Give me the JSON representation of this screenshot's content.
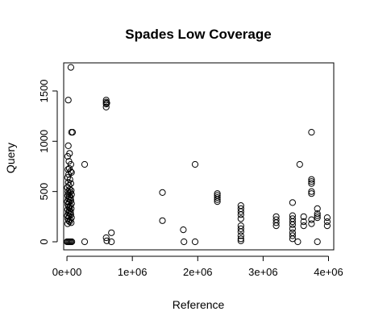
{
  "chart_data": {
    "type": "scatter",
    "title": "Spades Low Coverage",
    "xlabel": "Reference",
    "ylabel": "Query",
    "xlim": [
      -50000,
      4080000
    ],
    "ylim": [
      -80,
      1780
    ],
    "x_ticks": [
      {
        "value": 0,
        "label": "0e+00"
      },
      {
        "value": 1000000,
        "label": "1e+06"
      },
      {
        "value": 2000000,
        "label": "2e+06"
      },
      {
        "value": 3000000,
        "label": "3e+06"
      },
      {
        "value": 4000000,
        "label": "4e+06"
      }
    ],
    "y_ticks": [
      {
        "value": 0,
        "label": "0"
      },
      {
        "value": 500,
        "label": "500"
      },
      {
        "value": 1000,
        "label": "1000"
      },
      {
        "value": 1500,
        "label": "1500"
      }
    ],
    "grid": false,
    "legend": "none",
    "points": [
      [
        60000,
        1735
      ],
      [
        20000,
        1410
      ],
      [
        70000,
        1090
      ],
      [
        85000,
        1090
      ],
      [
        20000,
        955
      ],
      [
        40000,
        880
      ],
      [
        10000,
        850
      ],
      [
        30000,
        800
      ],
      [
        60000,
        770
      ],
      [
        15000,
        720
      ],
      [
        35000,
        730
      ],
      [
        55000,
        700
      ],
      [
        70000,
        690
      ],
      [
        25000,
        670
      ],
      [
        10000,
        640
      ],
      [
        45000,
        620
      ],
      [
        20000,
        590
      ],
      [
        60000,
        580
      ],
      [
        30000,
        560
      ],
      [
        5000,
        540
      ],
      [
        40000,
        520
      ],
      [
        65000,
        510
      ],
      [
        15000,
        500
      ],
      [
        50000,
        490
      ],
      [
        25000,
        480
      ],
      [
        70000,
        470
      ],
      [
        10000,
        460
      ],
      [
        35000,
        450
      ],
      [
        55000,
        440
      ],
      [
        20000,
        430
      ],
      [
        45000,
        420
      ],
      [
        60000,
        410
      ],
      [
        5000,
        400
      ],
      [
        30000,
        390
      ],
      [
        70000,
        380
      ],
      [
        15000,
        370
      ],
      [
        50000,
        360
      ],
      [
        25000,
        350
      ],
      [
        40000,
        340
      ],
      [
        65000,
        330
      ],
      [
        10000,
        320
      ],
      [
        35000,
        310
      ],
      [
        55000,
        300
      ],
      [
        20000,
        290
      ],
      [
        45000,
        280
      ],
      [
        60000,
        270
      ],
      [
        5000,
        260
      ],
      [
        30000,
        250
      ],
      [
        70000,
        240
      ],
      [
        15000,
        230
      ],
      [
        50000,
        220
      ],
      [
        25000,
        210
      ],
      [
        40000,
        200
      ],
      [
        65000,
        190
      ],
      [
        10000,
        180
      ],
      [
        0,
        0
      ],
      [
        15000,
        0
      ],
      [
        30000,
        0
      ],
      [
        45000,
        0
      ],
      [
        60000,
        0
      ],
      [
        75000,
        0
      ],
      [
        270000,
        770
      ],
      [
        270000,
        0
      ],
      [
        600000,
        1410
      ],
      [
        600000,
        1390
      ],
      [
        600000,
        1370
      ],
      [
        600000,
        1340
      ],
      [
        610000,
        1380
      ],
      [
        600000,
        40
      ],
      [
        610000,
        10
      ],
      [
        680000,
        90
      ],
      [
        680000,
        0
      ],
      [
        1460000,
        490
      ],
      [
        1460000,
        210
      ],
      [
        1780000,
        120
      ],
      [
        1790000,
        0
      ],
      [
        1960000,
        770
      ],
      [
        1960000,
        0
      ],
      [
        2300000,
        480
      ],
      [
        2300000,
        460
      ],
      [
        2300000,
        440
      ],
      [
        2300000,
        420
      ],
      [
        2300000,
        400
      ],
      [
        2660000,
        360
      ],
      [
        2660000,
        330
      ],
      [
        2660000,
        300
      ],
      [
        2660000,
        270
      ],
      [
        2660000,
        230
      ],
      [
        2660000,
        160
      ],
      [
        2660000,
        130
      ],
      [
        2660000,
        100
      ],
      [
        2660000,
        60
      ],
      [
        2660000,
        30
      ],
      [
        2660000,
        10
      ],
      [
        3200000,
        250
      ],
      [
        3200000,
        220
      ],
      [
        3200000,
        190
      ],
      [
        3200000,
        160
      ],
      [
        3450000,
        390
      ],
      [
        3450000,
        260
      ],
      [
        3450000,
        230
      ],
      [
        3450000,
        200
      ],
      [
        3450000,
        170
      ],
      [
        3450000,
        130
      ],
      [
        3450000,
        90
      ],
      [
        3450000,
        60
      ],
      [
        3450000,
        30
      ],
      [
        3530000,
        0
      ],
      [
        3560000,
        770
      ],
      [
        3620000,
        250
      ],
      [
        3620000,
        200
      ],
      [
        3620000,
        160
      ],
      [
        3740000,
        1090
      ],
      [
        3740000,
        620
      ],
      [
        3740000,
        600
      ],
      [
        3740000,
        580
      ],
      [
        3740000,
        500
      ],
      [
        3740000,
        480
      ],
      [
        3740000,
        220
      ],
      [
        3740000,
        180
      ],
      [
        3830000,
        330
      ],
      [
        3830000,
        280
      ],
      [
        3830000,
        260
      ],
      [
        3830000,
        240
      ],
      [
        3830000,
        0
      ],
      [
        3980000,
        240
      ],
      [
        3980000,
        200
      ],
      [
        3980000,
        160
      ]
    ]
  }
}
